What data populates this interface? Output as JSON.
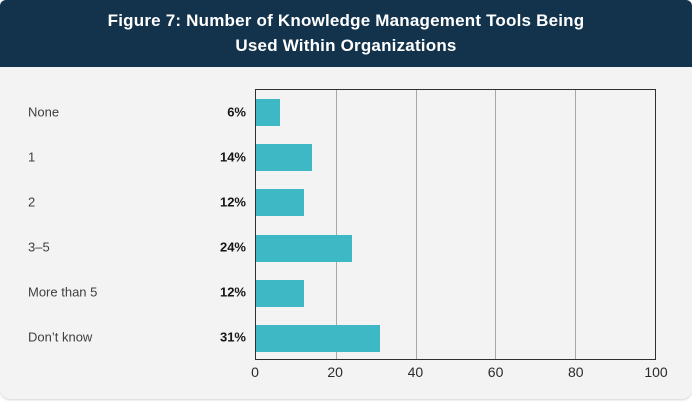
{
  "page": {
    "background": "#ffffff",
    "card_background": "#f3f3f4"
  },
  "header": {
    "background": "#13334c",
    "text_color": "#ffffff",
    "title_line1": "Figure 7: Number of Knowledge Management Tools Being",
    "title_line2": "Used Within Organizations"
  },
  "chart_data": {
    "type": "bar",
    "orientation": "horizontal",
    "title": "Figure 7: Number of Knowledge Management Tools Being Used Within Organizations",
    "categories": [
      "None",
      "1",
      "2",
      "3–5",
      "More than 5",
      "Don’t know"
    ],
    "values": [
      6,
      14,
      12,
      24,
      12,
      31
    ],
    "value_labels": [
      "6%",
      "14%",
      "12%",
      "24%",
      "12%",
      "31%"
    ],
    "xlabel": "",
    "ylabel": "",
    "xlim": [
      0,
      100
    ],
    "xticks": [
      0,
      20,
      40,
      60,
      80,
      100
    ],
    "grid": true,
    "legend": false,
    "bar_color": "#3eb8c4",
    "axis_color": "#2f2f2f",
    "gridline_color": "#a8a8a8",
    "label_color": "#3f3f3f",
    "value_label_color": "#161616"
  }
}
